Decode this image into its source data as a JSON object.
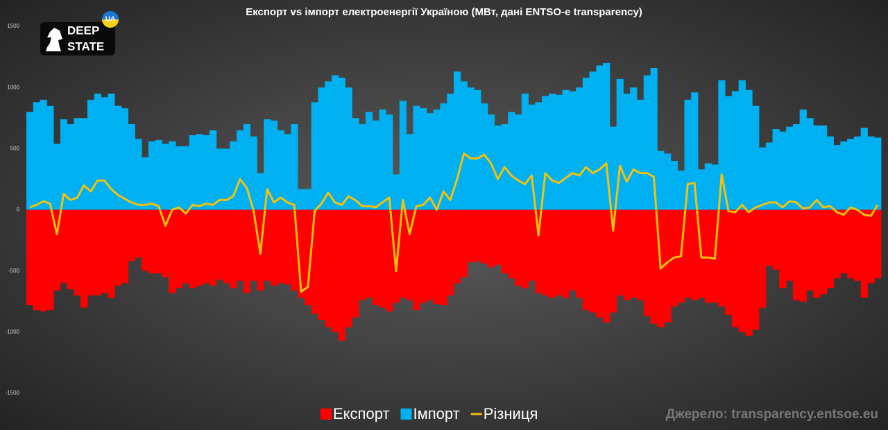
{
  "chart_data": {
    "type": "bar",
    "title": "Експорт vs імпорт електроенергії Україною (МВт, дані ENTSO-e transparency)",
    "source": "Джерело: transparency.entsoe.eu",
    "logo": {
      "line1": "DEEP",
      "line2": "STATE",
      "badge": "UA"
    },
    "ylim": [
      -1500,
      1500
    ],
    "yticks": [
      -1500,
      -1000,
      -500,
      0,
      500,
      1000,
      1500
    ],
    "legend": "bottom",
    "series": [
      {
        "name": "Експорт",
        "color": "#ff0000",
        "type": "bar",
        "values": [
          -780,
          -820,
          -830,
          -820,
          -660,
          -600,
          -650,
          -700,
          -800,
          -700,
          -700,
          -680,
          -720,
          -620,
          -600,
          -420,
          -390,
          -500,
          -520,
          -520,
          -550,
          -680,
          -640,
          -600,
          -640,
          -620,
          -600,
          -620,
          -570,
          -600,
          -640,
          -580,
          -680,
          -580,
          -660,
          -580,
          -620,
          -600,
          -610,
          -660,
          -720,
          -780,
          -850,
          -900,
          -960,
          -1000,
          -1070,
          -960,
          -880,
          -740,
          -720,
          -780,
          -800,
          -830,
          -760,
          -720,
          -740,
          -820,
          -760,
          -740,
          -770,
          -780,
          -700,
          -600,
          -550,
          -430,
          -420,
          -440,
          -470,
          -450,
          -520,
          -560,
          -620,
          -640,
          -580,
          -680,
          -700,
          -720,
          -700,
          -720,
          -660,
          -720,
          -820,
          -840,
          -880,
          -920,
          -840,
          -700,
          -740,
          -720,
          -740,
          -870,
          -930,
          -960,
          -920,
          -790,
          -760,
          -720,
          -740,
          -720,
          -760,
          -760,
          -790,
          -860,
          -960,
          -1000,
          -1030,
          -980,
          -800,
          -460,
          -490,
          -640,
          -580,
          -740,
          -750,
          -660,
          -720,
          -690,
          -640,
          -560,
          -520,
          -560,
          -580,
          -720,
          -600,
          -560
        ]
      },
      {
        "name": "Імпорт",
        "color": "#00b0f0",
        "type": "bar",
        "values": [
          800,
          880,
          900,
          850,
          540,
          740,
          700,
          750,
          750,
          900,
          950,
          920,
          950,
          850,
          830,
          700,
          580,
          430,
          560,
          570,
          540,
          560,
          520,
          520,
          610,
          620,
          610,
          650,
          500,
          500,
          560,
          650,
          700,
          600,
          300,
          740,
          730,
          650,
          620,
          700,
          170,
          170,
          880,
          1000,
          1050,
          1100,
          1080,
          1000,
          750,
          700,
          800,
          730,
          820,
          780,
          290,
          890,
          620,
          850,
          830,
          790,
          820,
          870,
          950,
          1130,
          1050,
          1000,
          980,
          870,
          780,
          690,
          700,
          800,
          780,
          950,
          860,
          880,
          930,
          950,
          940,
          980,
          970,
          1000,
          1080,
          1130,
          1180,
          1200,
          680,
          1070,
          950,
          1000,
          900,
          1100,
          1160,
          480,
          460,
          400,
          320,
          900,
          960,
          330,
          380,
          370,
          1060,
          930,
          970,
          1060,
          980,
          850,
          510,
          550,
          660,
          640,
          680,
          700,
          820,
          750,
          690,
          690,
          600,
          530,
          560,
          580,
          600,
          670,
          600,
          590
        ]
      },
      {
        "name": "Різниця",
        "color": "#f4c20d",
        "type": "line",
        "values": [
          20,
          40,
          70,
          50,
          -200,
          130,
          80,
          100,
          200,
          150,
          240,
          240,
          170,
          120,
          90,
          60,
          40,
          40,
          50,
          30,
          -130,
          0,
          20,
          -30,
          40,
          30,
          50,
          40,
          80,
          80,
          110,
          250,
          180,
          -10,
          -360,
          170,
          60,
          100,
          60,
          40,
          -670,
          -630,
          -10,
          50,
          140,
          60,
          40,
          110,
          80,
          30,
          30,
          20,
          60,
          100,
          -500,
          80,
          -200,
          30,
          40,
          100,
          0,
          150,
          80,
          250,
          460,
          420,
          420,
          450,
          380,
          250,
          350,
          280,
          240,
          210,
          280,
          -210,
          300,
          240,
          220,
          260,
          300,
          280,
          350,
          300,
          330,
          380,
          -170,
          360,
          230,
          330,
          300,
          300,
          270,
          -480,
          -430,
          -390,
          -380,
          210,
          220,
          -390,
          -390,
          -400,
          290,
          -10,
          -20,
          40,
          -20,
          20,
          40,
          60,
          60,
          20,
          70,
          60,
          10,
          20,
          80,
          20,
          30,
          -20,
          -40,
          20,
          0,
          -40,
          -50,
          40
        ]
      }
    ]
  }
}
